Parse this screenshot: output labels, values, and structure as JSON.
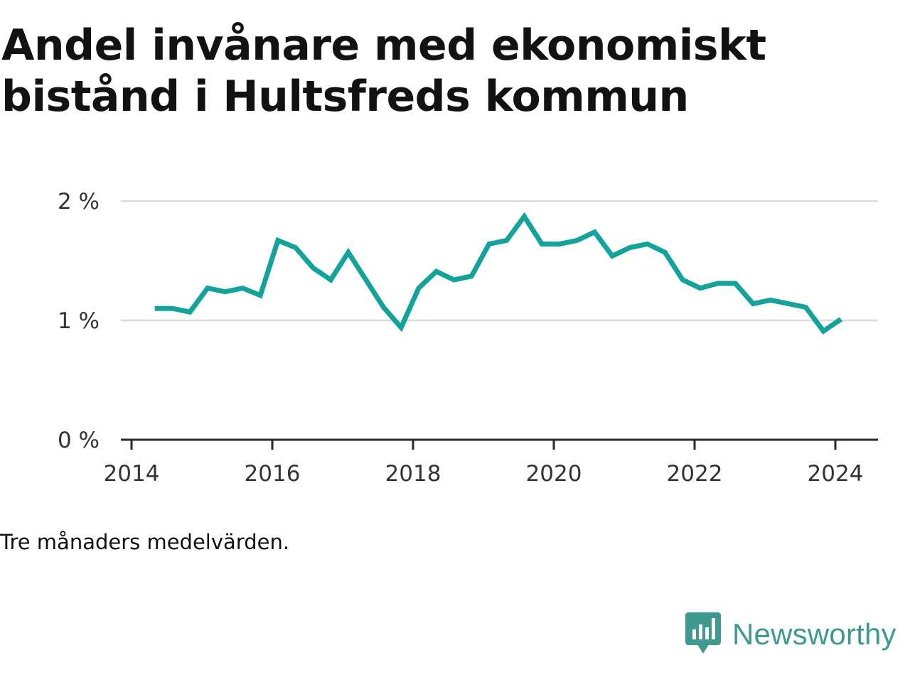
{
  "header": {
    "title": "Andel invånare med ekonomiskt bistånd i Hultsfreds kommun"
  },
  "note": "Tre månaders medelvärden.",
  "brand": {
    "name": "Newsworthy",
    "icon": "newsworthy-logo-icon",
    "color": "#3e9a8f"
  },
  "chart_data": {
    "type": "line",
    "title": "Andel invånare med ekonomiskt bistånd i Hultsfreds kommun",
    "xlabel": "",
    "ylabel": "",
    "x_ticks": [
      "2014",
      "2016",
      "2018",
      "2020",
      "2022",
      "2024"
    ],
    "y_ticks": [
      "0 %",
      "1 %",
      "2 %"
    ],
    "ylim": [
      0,
      2
    ],
    "xlim": [
      2014.0,
      2024.6
    ],
    "grid": true,
    "line_color": "#14a39a",
    "series": [
      {
        "x": [
          2014.33,
          2014.58,
          2014.83,
          2015.08,
          2015.33,
          2015.58,
          2015.83,
          2016.08,
          2016.33,
          2016.58,
          2016.83,
          2017.08,
          2017.33,
          2017.58,
          2017.83,
          2018.08,
          2018.33,
          2018.58,
          2018.83,
          2019.08,
          2019.33,
          2019.58,
          2019.83,
          2020.08,
          2020.33,
          2020.58,
          2020.83,
          2021.08,
          2021.33,
          2021.58,
          2021.83,
          2022.08,
          2022.33,
          2022.58,
          2022.83,
          2023.08,
          2023.33,
          2023.58,
          2023.83,
          2024.08
        ],
        "values": [
          1.1,
          1.1,
          1.07,
          1.27,
          1.24,
          1.27,
          1.21,
          1.67,
          1.61,
          1.44,
          1.34,
          1.57,
          1.34,
          1.11,
          0.94,
          1.27,
          1.41,
          1.34,
          1.37,
          1.64,
          1.67,
          1.87,
          1.64,
          1.64,
          1.67,
          1.74,
          1.54,
          1.61,
          1.64,
          1.57,
          1.34,
          1.27,
          1.31,
          1.31,
          1.14,
          1.17,
          1.14,
          1.11,
          0.91,
          1.01
        ]
      }
    ]
  }
}
